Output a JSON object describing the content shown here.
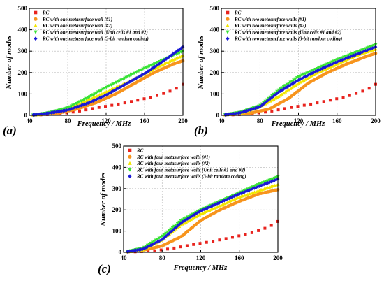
{
  "chart_data": [
    {
      "type": "scatter",
      "panel_label": "(a)",
      "xlabel": "Frequency / MHz",
      "ylabel": "Number of modes",
      "xlim": [
        40,
        200
      ],
      "ylim": [
        0,
        500
      ],
      "xticks": [
        "40",
        "80",
        "120",
        "160",
        "200"
      ],
      "yticks": [
        "0",
        "100",
        "200",
        "300",
        "400",
        "500"
      ],
      "grid": true,
      "legend_position": "top-left",
      "series": [
        {
          "name": "RC",
          "marker": "square",
          "color": "#e8231e",
          "x": [
            70,
            90,
            110,
            130,
            150,
            170,
            185,
            195,
            200
          ],
          "y": [
            6,
            18,
            35,
            50,
            68,
            88,
            110,
            130,
            145
          ]
        },
        {
          "name": "RC with one metasurface wall (#1)",
          "marker": "circle",
          "color": "#f7941d",
          "x": [
            70,
            90,
            110,
            130,
            150,
            170,
            190,
            200
          ],
          "y": [
            10,
            30,
            60,
            100,
            150,
            200,
            240,
            255
          ]
        },
        {
          "name": "RC with one metasurface wall (#2)",
          "marker": "triangle-up",
          "color": "#f2e600",
          "x": [
            50,
            60,
            80,
            100,
            120,
            140,
            160,
            180,
            200
          ],
          "y": [
            3,
            10,
            30,
            70,
            110,
            150,
            195,
            240,
            280
          ]
        },
        {
          "name": "RC with one metasurface wall (Unit cells #1 and #2)",
          "marker": "triangle-down",
          "color": "#39e336",
          "x": [
            45,
            60,
            80,
            100,
            120,
            140,
            160,
            180,
            200
          ],
          "y": [
            2,
            12,
            35,
            80,
            130,
            175,
            220,
            260,
            300
          ]
        },
        {
          "name": "RC with one metasurface wall (3-bit random coding)",
          "marker": "diamond",
          "color": "#1a1ad6",
          "x": [
            60,
            80,
            100,
            120,
            140,
            160,
            180,
            200
          ],
          "y": [
            10,
            25,
            55,
            95,
            145,
            195,
            255,
            320
          ]
        }
      ]
    },
    {
      "type": "scatter",
      "panel_label": "(b)",
      "xlabel": "Frequency / MHz",
      "ylabel": "Number of modes",
      "xlim": [
        40,
        200
      ],
      "ylim": [
        0,
        500
      ],
      "xticks": [
        "40",
        "80",
        "120",
        "160",
        "200"
      ],
      "yticks": [
        "0",
        "100",
        "200",
        "300",
        "400",
        "500"
      ],
      "grid": true,
      "legend_position": "top-left",
      "series": [
        {
          "name": "RC",
          "marker": "square",
          "color": "#e8231e",
          "x": [
            70,
            90,
            110,
            130,
            150,
            170,
            185,
            195,
            200
          ],
          "y": [
            6,
            18,
            35,
            50,
            68,
            88,
            110,
            130,
            145
          ]
        },
        {
          "name": "RC with two metasurface walls (#1)",
          "marker": "circle",
          "color": "#f7941d",
          "x": [
            70,
            90,
            110,
            130,
            150,
            170,
            190,
            200
          ],
          "y": [
            10,
            30,
            80,
            150,
            200,
            240,
            275,
            290
          ]
        },
        {
          "name": "RC with two metasurface walls (#2)",
          "marker": "triangle-up",
          "color": "#f2e600",
          "x": [
            60,
            80,
            100,
            120,
            140,
            160,
            180,
            200
          ],
          "y": [
            10,
            40,
            90,
            150,
            200,
            240,
            280,
            310
          ]
        },
        {
          "name": "RC with two metasurface walls (Unit cells #1 and #2)",
          "marker": "triangle-down",
          "color": "#39e336",
          "x": [
            60,
            80,
            100,
            120,
            140,
            160,
            180,
            200
          ],
          "y": [
            15,
            45,
            120,
            180,
            220,
            260,
            295,
            330
          ]
        },
        {
          "name": "RC with two metasurface walls (3-bit random coding)",
          "marker": "diamond",
          "color": "#1a1ad6",
          "x": [
            60,
            80,
            100,
            120,
            140,
            160,
            180,
            200
          ],
          "y": [
            12,
            40,
            110,
            165,
            210,
            250,
            285,
            320
          ]
        }
      ]
    },
    {
      "type": "scatter",
      "panel_label": "(c)",
      "xlabel": "Frequency / MHz",
      "ylabel": "Number of modes",
      "xlim": [
        40,
        200
      ],
      "ylim": [
        0,
        500
      ],
      "xticks": [
        "40",
        "80",
        "120",
        "160",
        "200"
      ],
      "yticks": [
        "0",
        "100",
        "200",
        "300",
        "400",
        "500"
      ],
      "grid": true,
      "legend_position": "top-left",
      "series": [
        {
          "name": "RC",
          "marker": "square",
          "color": "#e8231e",
          "x": [
            70,
            90,
            110,
            130,
            150,
            170,
            185,
            195,
            200
          ],
          "y": [
            6,
            18,
            35,
            50,
            68,
            88,
            110,
            130,
            145
          ]
        },
        {
          "name": "RC with four metasurface walls (#1)",
          "marker": "circle",
          "color": "#f7941d",
          "x": [
            60,
            80,
            100,
            120,
            140,
            160,
            180,
            200
          ],
          "y": [
            10,
            30,
            75,
            150,
            200,
            240,
            275,
            295
          ]
        },
        {
          "name": "RC with four metasurface walls (#2)",
          "marker": "triangle-up",
          "color": "#f2e600",
          "x": [
            60,
            80,
            100,
            120,
            140,
            160,
            180,
            200
          ],
          "y": [
            12,
            60,
            130,
            180,
            220,
            260,
            290,
            320
          ]
        },
        {
          "name": "RC with four metasurface walls (Unit cells #1 and #2)",
          "marker": "triangle-down",
          "color": "#39e336",
          "x": [
            60,
            80,
            100,
            120,
            140,
            160,
            180,
            200
          ],
          "y": [
            20,
            75,
            150,
            200,
            240,
            280,
            320,
            355
          ]
        },
        {
          "name": "RC with four metasurface walls (3-bit random coding)",
          "marker": "diamond",
          "color": "#1a1ad6",
          "x": [
            60,
            80,
            100,
            120,
            140,
            160,
            180,
            200
          ],
          "y": [
            15,
            60,
            140,
            195,
            235,
            275,
            310,
            345
          ]
        }
      ]
    }
  ]
}
